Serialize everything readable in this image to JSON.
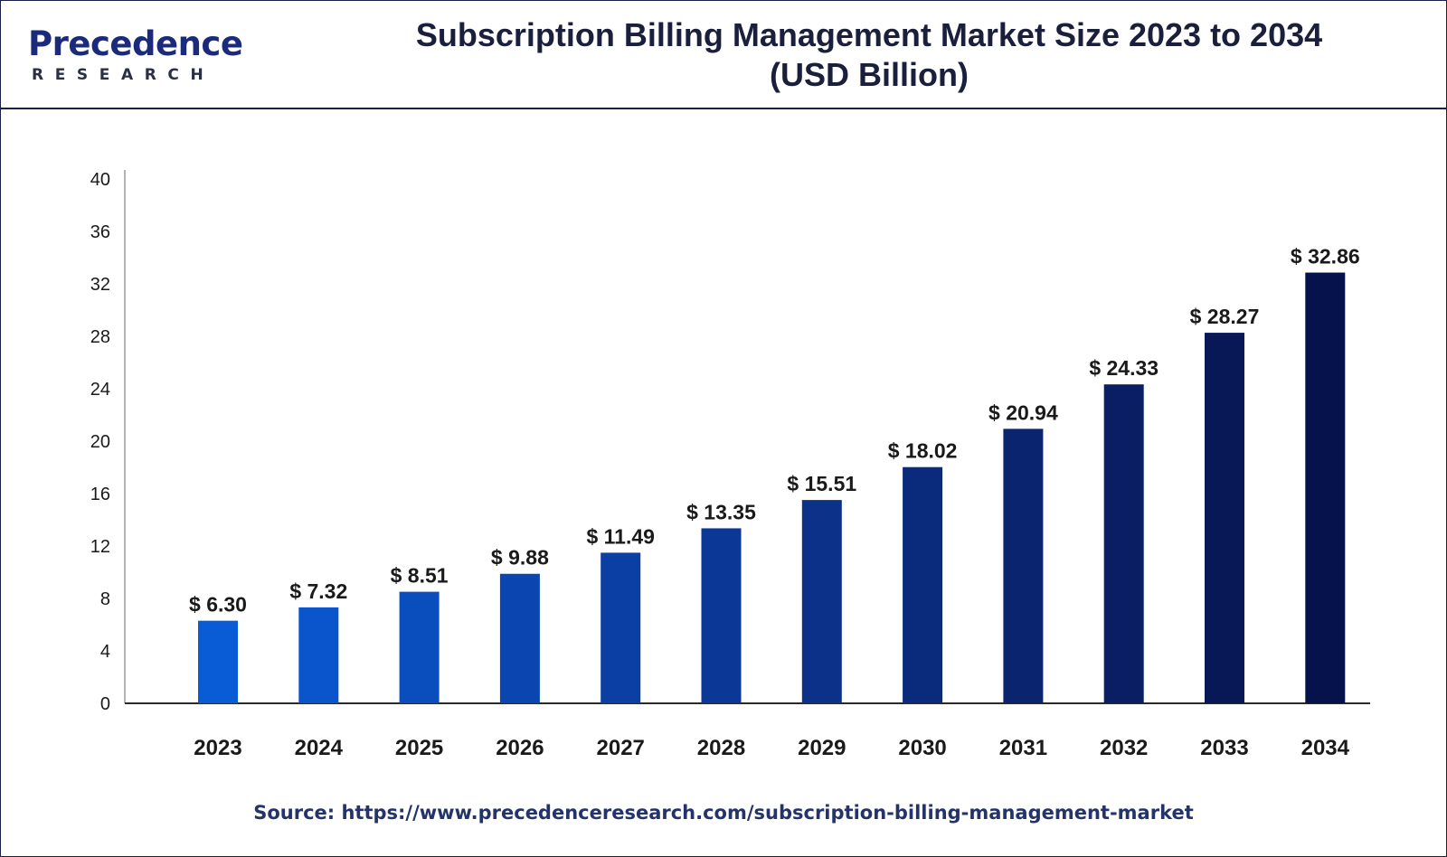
{
  "header": {
    "logo_word": "Precedence",
    "logo_sub": "RESEARCH",
    "title_line1": "Subscription Billing Management Market Size 2023 to 2034",
    "title_line2": "(USD Billion)"
  },
  "source": "Source: https://www.precedenceresearch.com/subscription-billing-management-market",
  "chart_data": {
    "type": "bar",
    "title": "Subscription Billing Management Market Size 2023 to 2034 (USD Billion)",
    "categories": [
      "2023",
      "2024",
      "2025",
      "2026",
      "2027",
      "2028",
      "2029",
      "2030",
      "2031",
      "2032",
      "2033",
      "2034"
    ],
    "values": [
      6.3,
      7.32,
      8.51,
      9.88,
      11.49,
      13.35,
      15.51,
      18.02,
      20.94,
      24.33,
      28.27,
      32.86
    ],
    "data_labels": [
      "$ 6.30",
      "$ 7.32",
      "$ 8.51",
      "$ 9.88",
      "$ 11.49",
      "$ 13.35",
      "$ 15.51",
      "$ 18.02",
      "$ 20.94",
      "$ 24.33",
      "$ 28.27",
      "$ 32.86"
    ],
    "yticks": [
      "0",
      "4",
      "8",
      "12",
      "16",
      "20",
      "24",
      "28",
      "32",
      "36",
      "40"
    ],
    "ylim": [
      0,
      40
    ],
    "xlabel": "",
    "ylabel": "",
    "grid": false,
    "legend": "none",
    "bar_colors": [
      "#0a5cd6",
      "#0a55cb",
      "#0a4dbd",
      "#0b46b0",
      "#0b3fa3",
      "#0b3896",
      "#0b3189",
      "#0a2a7c",
      "#0a2470",
      "#091e63",
      "#081857",
      "#06124b"
    ]
  }
}
